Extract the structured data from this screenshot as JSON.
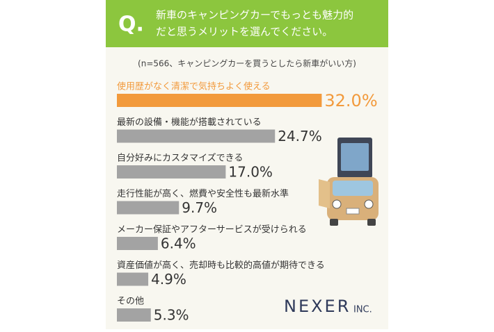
{
  "chart_data": {
    "type": "bar",
    "orientation": "horizontal",
    "title_prefix": "Q.",
    "title": [
      "新車のキャンピングカーでもっとも魅力的",
      "だと思うメリットを選んでください。"
    ],
    "subtitle": "(n=566、キャンピングカーを買うとしたら新車がいい方)",
    "categories": [
      "使用歴がなく清潔で気持ちよく使える",
      "最新の設備・機能が搭載されている",
      "自分好みにカスタマイズできる",
      "走行性能が高く、燃費や安全性も最新水準",
      "メーカー保証やアフターサービスが受けられる",
      "資産価値が高く、売却時も比較的高値が期待できる",
      "その他"
    ],
    "values": [
      32.0,
      24.7,
      17.0,
      9.7,
      6.4,
      4.9,
      5.3
    ],
    "value_labels": [
      "32.0%",
      "24.7%",
      "17.0%",
      "9.7%",
      "6.4%",
      "4.9%",
      "5.3%"
    ],
    "colors": [
      "#f29a3c",
      "#a3a3a3",
      "#a3a3a3",
      "#a3a3a3",
      "#a3a3a3",
      "#a3a3a3",
      "#a3a3a3"
    ],
    "highlight_label_color": "#f29a3c",
    "annotations": [
      "NEXER",
      "INC."
    ]
  }
}
